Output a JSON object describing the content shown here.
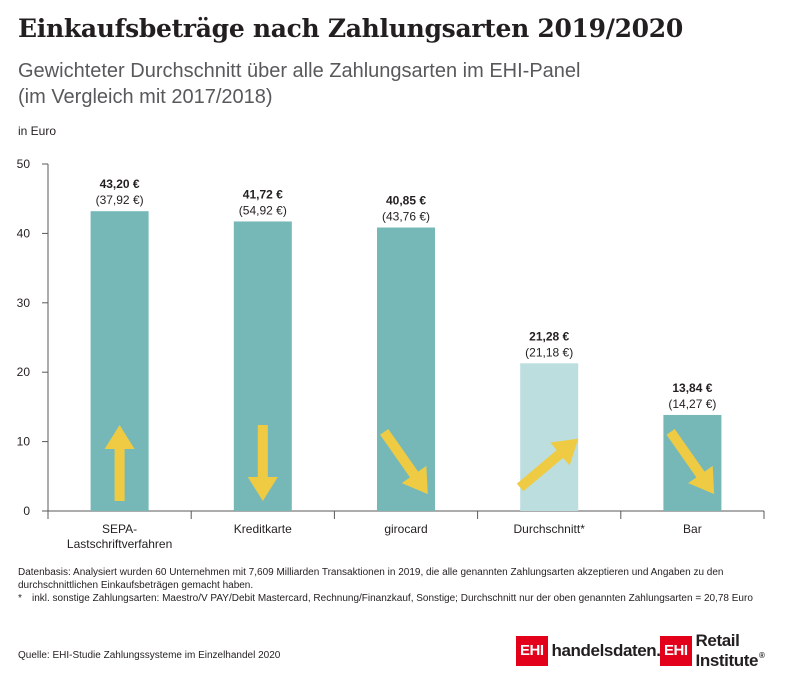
{
  "title": "Einkaufsbeträge nach Zahlungsarten 2019/2020",
  "subtitle_line1": "Gewichteter Durchschnitt über alle Zahlungsarten im EHI-Panel",
  "subtitle_line2": "(im Vergleich mit 2017/2018)",
  "unit_label": "in Euro",
  "chart_data": {
    "type": "bar",
    "ylabel": "in Euro",
    "ylim": [
      0,
      50
    ],
    "yticks": [
      "0",
      "10",
      "20",
      "30",
      "40",
      "50"
    ],
    "grid": false,
    "categories": [
      "SEPA-Lastschriftverfahren",
      "Kreditkarte",
      "girocard",
      "Durchschnitt*",
      "Bar"
    ],
    "category_lines": [
      [
        "SEPA-",
        "Lastschriftverfahren"
      ],
      [
        "Kreditkarte"
      ],
      [
        "girocard"
      ],
      [
        "Durchschnitt*"
      ],
      [
        "Bar"
      ]
    ],
    "series": [
      {
        "values": [
          43.2,
          41.72,
          40.85,
          21.28,
          13.84
        ]
      },
      {
        "values": [
          37.92,
          54.92,
          43.76,
          21.18,
          14.27
        ]
      }
    ],
    "value_labels": [
      "43,20 €",
      "41,72 €",
      "40,85 €",
      "21,28 €",
      "13,84 €"
    ],
    "comparison_labels": [
      "(37,92 €)",
      "(54,92 €)",
      "(43,76 €)",
      "(21,18 €)",
      "(14,27 €)"
    ],
    "trend_arrows": [
      "up",
      "down",
      "down-right",
      "up-right",
      "down-right"
    ],
    "highlight_index": 3,
    "colors": {
      "bar": "#76b8b7",
      "bar_highlight": "#bcdedf",
      "arrow": "#eecb43",
      "axis": "#58595b"
    }
  },
  "notes": {
    "datenbasis": "Datenbasis: Analysiert wurden 60 Unternehmen mit 7,609 Milliarden Transaktionen in 2019, die alle genannten Zahlungsarten akzeptieren und Angaben zu den durchschnittlichen Einkaufsbeträgen gemacht haben.",
    "footnote_marker": "*",
    "footnote": "inkl. sonstige Zahlungsarten: Maestro/V PAY/Debit Mastercard, Rechnung/Finanzkauf, Sonstige; Durchschnitt nur der oben genannten Zahlungsarten = 20,78 Euro"
  },
  "source": "Quelle: EHI-Studie Zahlungssysteme im Einzelhandel 2020",
  "logos": {
    "ehi_box": "EHI",
    "handelsdaten": "handelsdaten.de",
    "retail": "Retail Institute",
    "registered": "®"
  }
}
